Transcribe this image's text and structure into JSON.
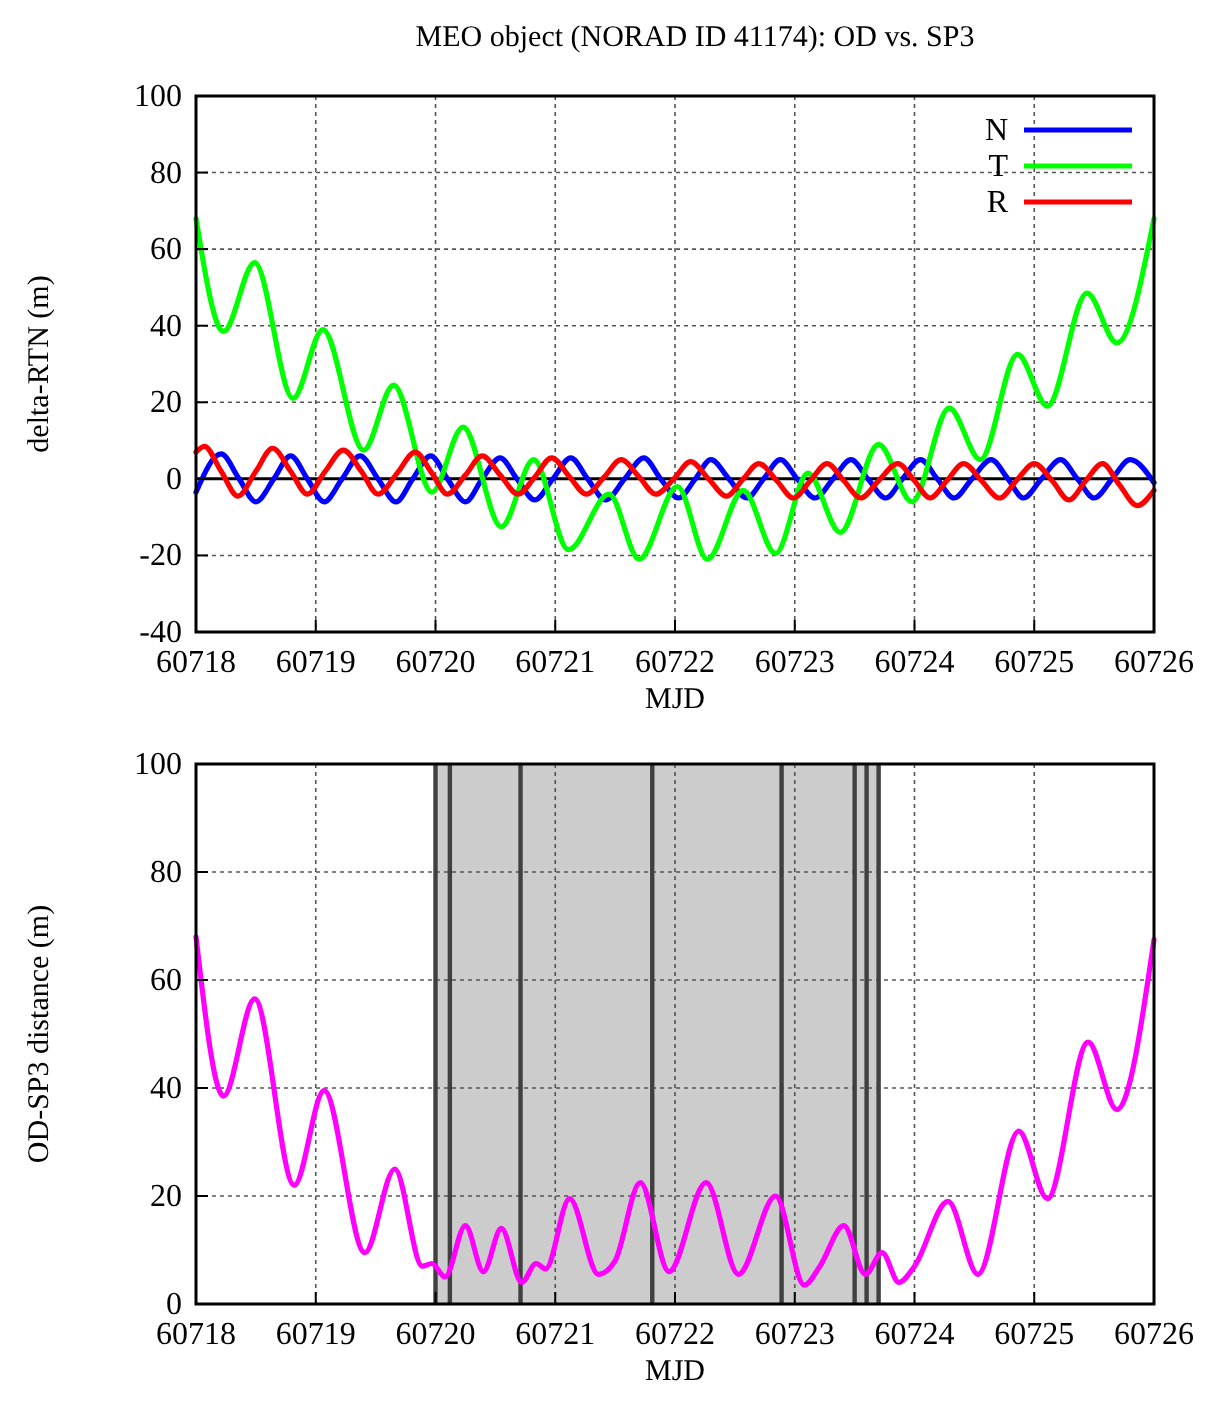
{
  "chart_data": [
    {
      "type": "line",
      "title": "MEO object (NORAD ID 41174): OD vs. SP3",
      "xlabel": "MJD",
      "ylabel": "delta-RTN (m)",
      "xlim": [
        60718,
        60726
      ],
      "ylim": [
        -40,
        100
      ],
      "xticks": [
        60718,
        60719,
        60720,
        60721,
        60722,
        60723,
        60724,
        60725,
        60726
      ],
      "yticks": [
        -40,
        -20,
        0,
        20,
        40,
        60,
        80,
        100
      ],
      "grid": true,
      "legend": "top right",
      "ref_lines": [
        {
          "axis": "y",
          "value": 0,
          "color": "#000000"
        }
      ],
      "series": [
        {
          "name": "N",
          "color": "#0000ff",
          "x": [
            60718.0,
            60718.21,
            60718.36,
            60718.5,
            60718.65,
            60718.79,
            60718.93,
            60719.07,
            60719.22,
            60719.37,
            60719.52,
            60719.67,
            60719.81,
            60719.96,
            60720.1,
            60720.25,
            60720.39,
            60720.54,
            60720.68,
            60720.83,
            60720.98,
            60721.13,
            60721.27,
            60721.42,
            60721.58,
            60721.74,
            60721.88,
            60722.03,
            60722.17,
            60722.3,
            60722.45,
            60722.6,
            60722.74,
            60722.88,
            60723.02,
            60723.17,
            60723.32,
            60723.47,
            60723.61,
            60723.76,
            60723.9,
            60724.05,
            60724.19,
            60724.33,
            60724.48,
            60724.64,
            60724.78,
            60724.91,
            60725.06,
            60725.22,
            60725.36,
            60725.5,
            60725.65,
            60725.8,
            60726
          ],
          "values": [
            -3.5,
            6.5,
            0,
            -6,
            0,
            6,
            0,
            -6,
            0,
            6,
            0,
            -6,
            0,
            6,
            0,
            -6,
            0,
            5.5,
            0,
            -5.5,
            0,
            5.5,
            0,
            -5.5,
            0,
            5.5,
            0,
            -5,
            0,
            5,
            0,
            -5,
            0,
            5,
            0,
            -5,
            0,
            5,
            0,
            -5,
            0,
            5,
            0,
            -5,
            0,
            5,
            0,
            -5,
            0,
            5,
            0,
            -5,
            0,
            5,
            -1
          ]
        },
        {
          "name": "T",
          "color": "#00ff00",
          "x": [
            60718.0,
            60718.23,
            60718.49,
            60718.81,
            60719.06,
            60719.4,
            60719.65,
            60719.97,
            60720.23,
            60720.55,
            60720.82,
            60721.11,
            60721.45,
            60721.7,
            60722.02,
            60722.27,
            60722.57,
            60722.84,
            60723.11,
            60723.38,
            60723.7,
            60723.98,
            60724.29,
            60724.55,
            60724.86,
            60725.11,
            60725.44,
            60725.69,
            60726
          ],
          "values": [
            68,
            38.5,
            56.5,
            21,
            39,
            7.5,
            24.5,
            -3.5,
            13.5,
            -12.5,
            5,
            -18.5,
            -4,
            -21,
            -2,
            -21,
            -3,
            -19.5,
            1.5,
            -14,
            9,
            -6,
            18.5,
            5,
            32.5,
            19,
            48.5,
            35.5,
            68
          ]
        },
        {
          "name": "R",
          "color": "#ff0000",
          "x": [
            60718.0,
            60718.07,
            60718.21,
            60718.35,
            60718.5,
            60718.64,
            60718.79,
            60718.93,
            60719.08,
            60719.23,
            60719.38,
            60719.52,
            60719.68,
            60719.83,
            60719.97,
            60720.1,
            60720.25,
            60720.39,
            60720.54,
            60720.69,
            60720.83,
            60720.97,
            60721.12,
            60721.26,
            60721.41,
            60721.55,
            60721.7,
            60721.84,
            60721.99,
            60722.13,
            60722.28,
            60722.43,
            60722.57,
            60722.7,
            60722.85,
            60722.99,
            60723.13,
            60723.27,
            60723.41,
            60723.55,
            60723.7,
            60723.86,
            60724.0,
            60724.13,
            60724.27,
            60724.41,
            60724.56,
            60724.71,
            60724.85,
            60725.0,
            60725.15,
            60725.29,
            60725.43,
            60725.57,
            60725.71,
            60725.86,
            60726
          ],
          "values": [
            7,
            8.5,
            2,
            -4.5,
            2,
            8,
            2,
            -4,
            2,
            7.5,
            2,
            -4,
            1.5,
            7,
            1.5,
            -4,
            1,
            6,
            1,
            -4,
            0.5,
            5.5,
            0.5,
            -4,
            0.5,
            5,
            0.5,
            -4,
            0,
            4.5,
            0,
            -4.5,
            0,
            4,
            -0.5,
            -5,
            -0.5,
            4,
            -0.5,
            -5,
            -0.5,
            4,
            -0.5,
            -5,
            -0.5,
            4,
            -0.5,
            -5,
            -0.5,
            4,
            -0.5,
            -5.5,
            -0.5,
            4,
            -1.5,
            -7,
            -3
          ]
        }
      ]
    },
    {
      "type": "line",
      "xlabel": "MJD",
      "ylabel": "OD-SP3 distance (m)",
      "xlim": [
        60718,
        60726
      ],
      "ylim": [
        0,
        100
      ],
      "xticks": [
        60718,
        60719,
        60720,
        60721,
        60722,
        60723,
        60724,
        60725,
        60726
      ],
      "yticks": [
        0,
        20,
        40,
        60,
        80,
        100
      ],
      "grid": true,
      "bands": [
        {
          "axis": "x",
          "from": 60720.0,
          "to": 60723.72,
          "color": "#cccccc"
        }
      ],
      "ref_lines": [
        {
          "axis": "x",
          "value": 60720.0,
          "color": "#404040"
        },
        {
          "axis": "x",
          "value": 60720.12,
          "color": "#404040"
        },
        {
          "axis": "x",
          "value": 60720.71,
          "color": "#404040"
        },
        {
          "axis": "x",
          "value": 60721.81,
          "color": "#404040"
        },
        {
          "axis": "x",
          "value": 60722.89,
          "color": "#404040"
        },
        {
          "axis": "x",
          "value": 60723.5,
          "color": "#404040"
        },
        {
          "axis": "x",
          "value": 60723.6,
          "color": "#404040"
        },
        {
          "axis": "x",
          "value": 60723.7,
          "color": "#404040"
        }
      ],
      "series": [
        {
          "color": "#ff00ff",
          "x": [
            60718.0,
            60718.23,
            60718.49,
            60718.82,
            60719.07,
            60719.41,
            60719.66,
            60719.89,
            60719.97,
            60720.08,
            60720.25,
            60720.4,
            60720.55,
            60720.72,
            60720.84,
            60720.92,
            60721.12,
            60721.36,
            60721.5,
            60721.71,
            60721.95,
            60722.26,
            60722.53,
            60722.84,
            60723.08,
            60723.21,
            60723.41,
            60723.59,
            60723.73,
            60723.87,
            60724.0,
            60724.28,
            60724.53,
            60724.87,
            60725.11,
            60725.45,
            60725.69,
            60726
          ],
          "values": [
            68,
            38.5,
            56.5,
            22,
            39.5,
            9.5,
            25,
            7,
            7.5,
            5,
            14.5,
            6,
            14,
            4,
            7.5,
            6.5,
            19.5,
            5.5,
            8,
            22.5,
            6,
            22.5,
            5.5,
            20,
            3.5,
            7,
            14.5,
            5.5,
            9.5,
            4,
            7,
            19,
            5.5,
            32,
            19.5,
            48.5,
            36,
            67.5
          ]
        }
      ]
    }
  ]
}
